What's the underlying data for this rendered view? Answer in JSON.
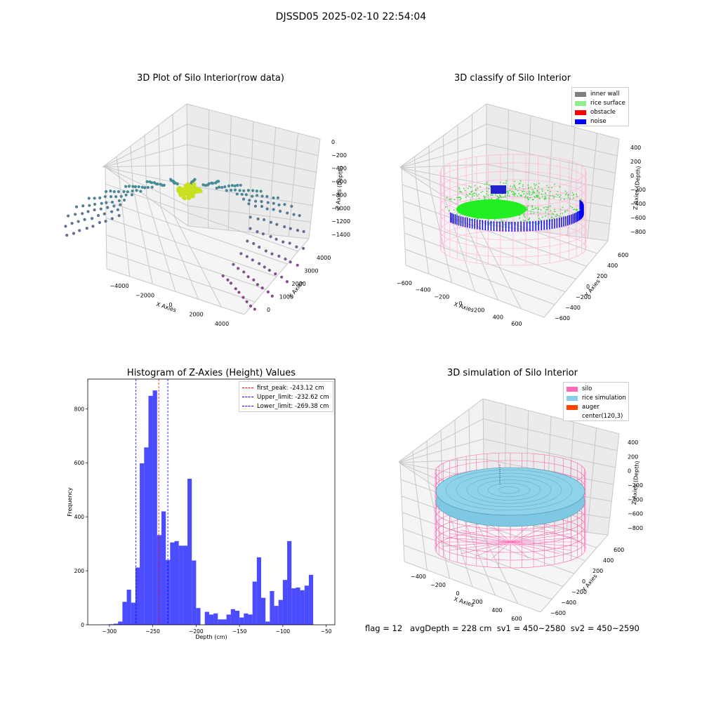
{
  "figure": {
    "suptitle": "DJSSD05 2025-02-10 22:54:04",
    "footer": "flag = 12   avgDepth = 228 cm  sv1 = 450~2580  sv2 = 450~2590"
  },
  "panels": {
    "raw": {
      "title": "3D Plot of Silo Interior(row data)",
      "xlabel": "X Axies",
      "ylabel": "Y Axies",
      "zlabel": "Z Axies (Depth)",
      "xticks": [
        "−4000",
        "−2000",
        "0",
        "2000",
        "4000"
      ],
      "yticks": [
        "0",
        "1000",
        "2000",
        "3000",
        "4000"
      ],
      "zticks": [
        "0",
        "−200",
        "−400",
        "−600",
        "−800",
        "−1000",
        "−1200",
        "−1400"
      ]
    },
    "classify": {
      "title": "3D classify of Silo Interior",
      "xlabel": "X Axies",
      "ylabel": "Y Axies",
      "zlabel": "Z Axies (Depth)",
      "xticks": [
        "−600",
        "−400",
        "−200",
        "0",
        "200",
        "400",
        "600"
      ],
      "yticks": [
        "−600",
        "−400",
        "−200",
        "0",
        "200",
        "400",
        "600"
      ],
      "zticks": [
        "400",
        "200",
        "0",
        "−200",
        "−400",
        "−600",
        "−800"
      ],
      "legend": [
        {
          "label": "inner wall",
          "color": "#808080"
        },
        {
          "label": "rice surface",
          "color": "#90ee90"
        },
        {
          "label": "obstacle",
          "color": "#ff0000"
        },
        {
          "label": "noise",
          "color": "#0000ff"
        }
      ]
    },
    "simulation": {
      "title": "3D simulation of Silo Interior",
      "xlabel": "X Axies",
      "ylabel": "Y Axies",
      "zlabel": "Z Axies (Depth)",
      "xticks": [
        "−400",
        "−200",
        "0",
        "200",
        "400",
        "600"
      ],
      "yticks": [
        "−600",
        "−400",
        "−200",
        "0",
        "200",
        "400",
        "600"
      ],
      "zticks": [
        "400",
        "200",
        "0",
        "−200",
        "−400",
        "−600",
        "−800"
      ],
      "legend": [
        {
          "label": "silo",
          "color": "#ff69b4"
        },
        {
          "label": "rice simulation",
          "color": "#87ceeb"
        },
        {
          "label": "auger",
          "color": "#ff4500"
        },
        {
          "label": "center(120,3)",
          "color": ""
        }
      ]
    }
  },
  "chart_data": [
    {
      "type": "bar",
      "title": "Histogram of Z-Axies (Height) Values",
      "xlabel": "Depth (cm)",
      "ylabel": "Frequency",
      "xlim": [
        -325,
        -40
      ],
      "ylim": [
        0,
        910
      ],
      "xticks": [
        -300,
        -250,
        -200,
        -150,
        -100,
        -50
      ],
      "yticks": [
        0,
        200,
        400,
        600,
        800
      ],
      "bin_start": -305,
      "bin_width": 5,
      "color": "#0000ff",
      "values": [
        1,
        2,
        4,
        12,
        85,
        130,
        82,
        212,
        598,
        657,
        848,
        868,
        332,
        420,
        240,
        305,
        310,
        293,
        293,
        541,
        238,
        62,
        0,
        48,
        38,
        42,
        20,
        20,
        38,
        58,
        52,
        27,
        42,
        38,
        160,
        250,
        100,
        12,
        125,
        70,
        92,
        166,
        310,
        135,
        138,
        128,
        145,
        185
      ],
      "vlines": [
        {
          "x": -243.12,
          "label": "first_peak: -243.12 cm",
          "color": "#ff0000"
        },
        {
          "x": -232.62,
          "label": "Upper_limit: -232.62 cm",
          "color": "#0000ff"
        },
        {
          "x": -269.38,
          "label": "Lower_limit: -269.38 cm",
          "color": "#0000ff"
        }
      ]
    }
  ]
}
